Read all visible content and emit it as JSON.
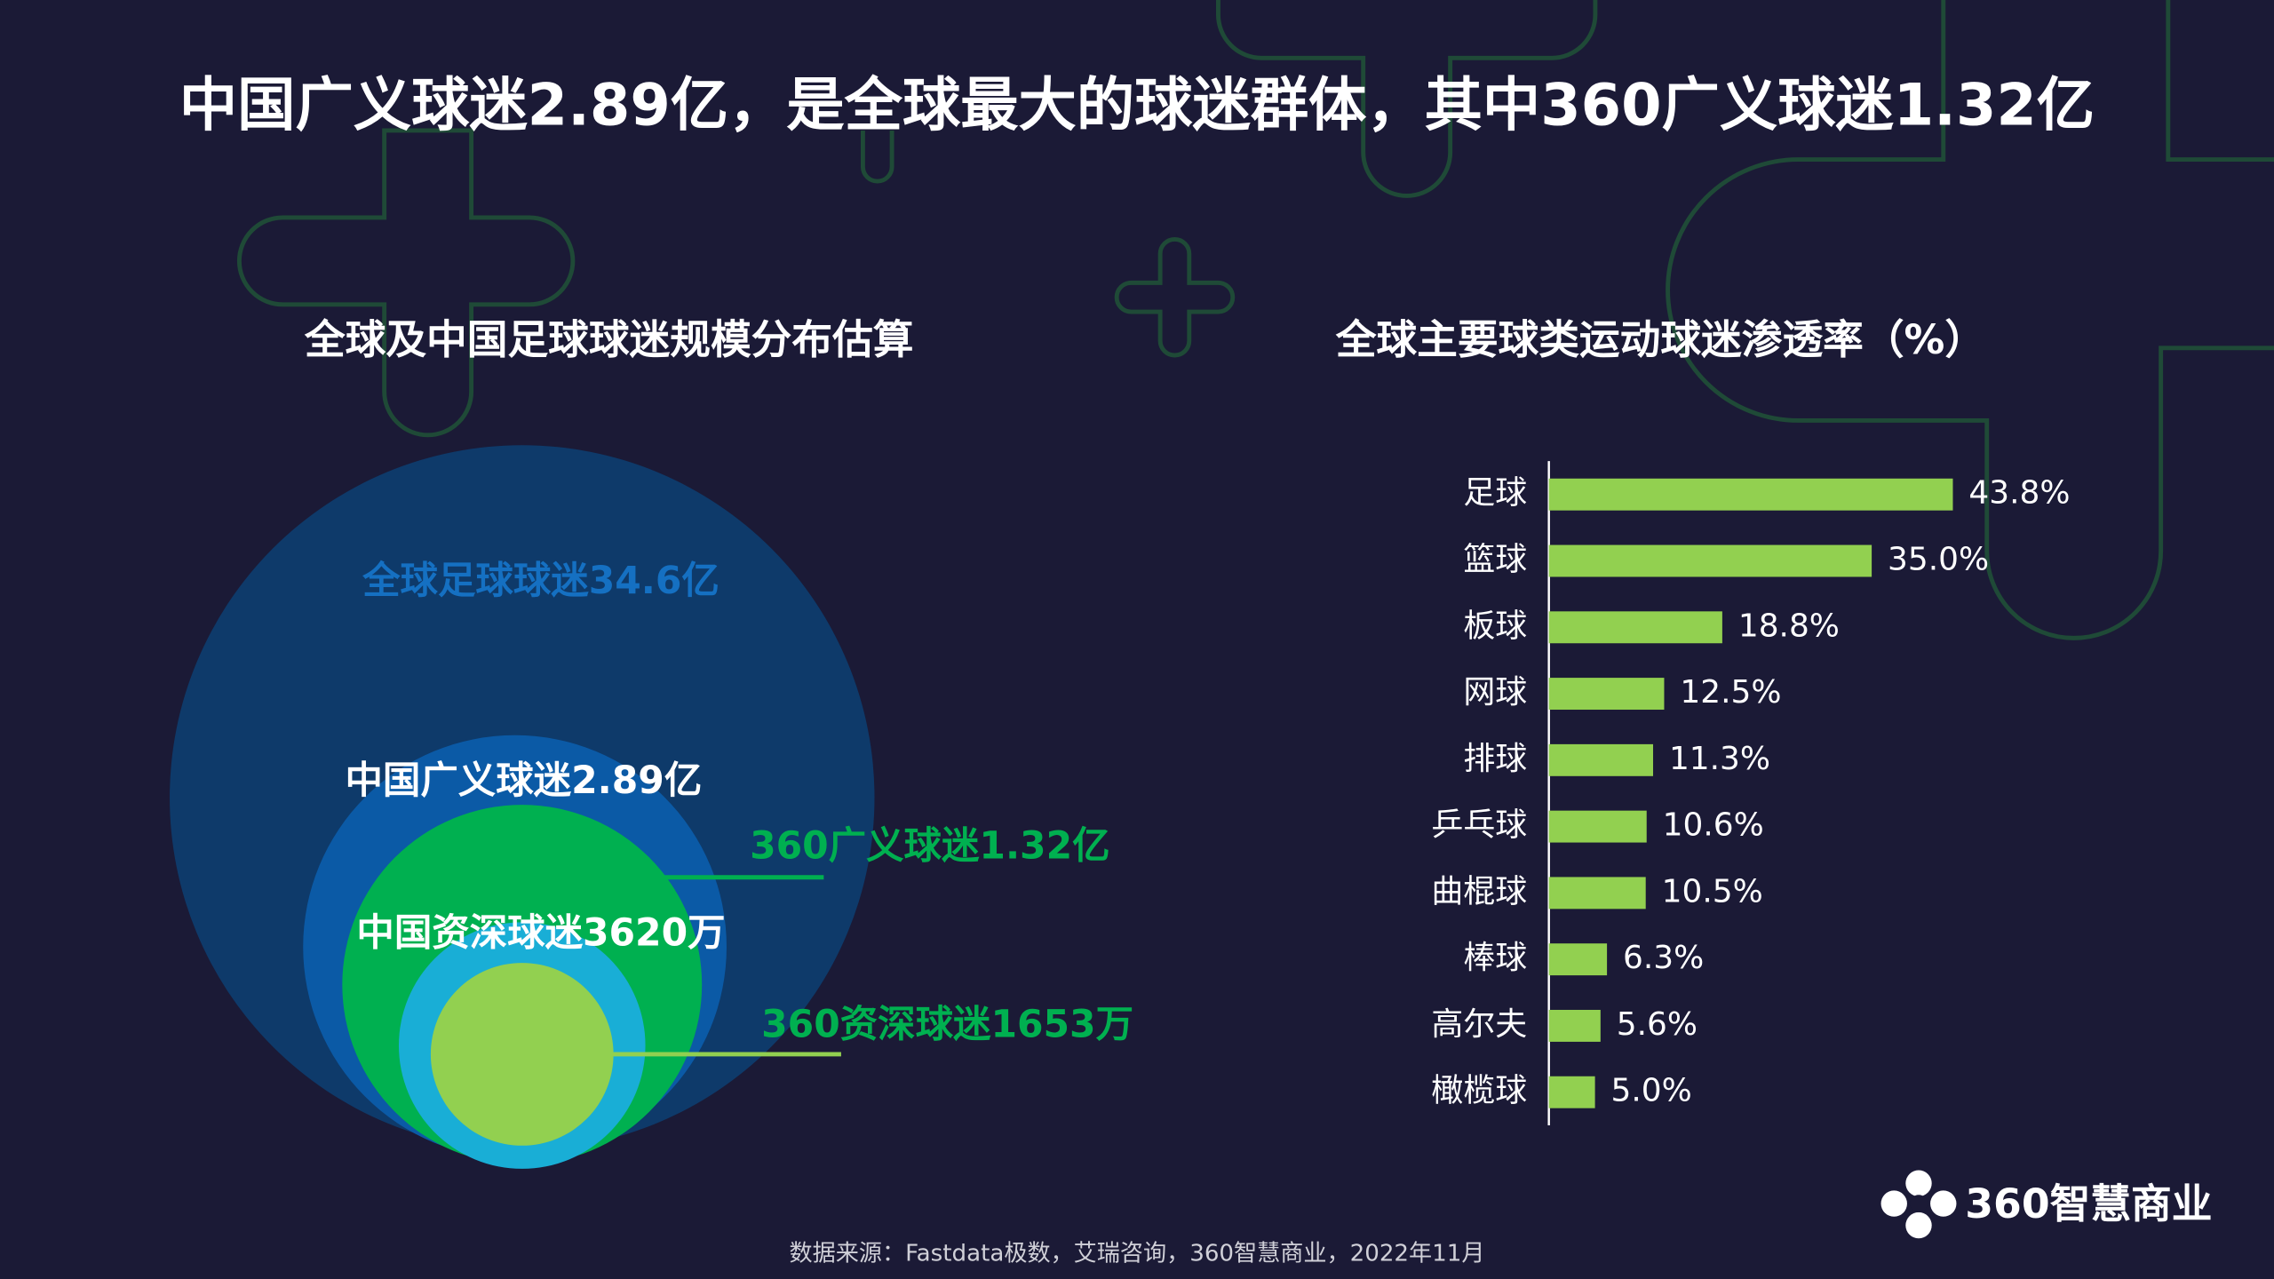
{
  "title": "中国广义球迷2.89亿，是全球最大的球迷群体，其中360广义球迷1.32亿",
  "source": "数据来源：Fastdata极数，艾瑞咨询，360智慧商业，2022年11月",
  "logo": "360智慧商业",
  "chart_data": [
    {
      "type": "nested-circles",
      "title": "全球及中国足球球迷规模分布估算",
      "circles": [
        {
          "label": "全球足球球迷34.6亿",
          "color": "#0e3a6a",
          "label_color": "#1570c2"
        },
        {
          "label": "中国广义球迷2.89亿",
          "color": "#0b5aa6",
          "label_color": "#ffffff"
        },
        {
          "label": "360广义球迷1.32亿",
          "color": "#00b050",
          "label_color": "#00b050"
        },
        {
          "label": "中国资深球迷3620万",
          "color": "#19aed6",
          "label_color": "#ffffff"
        },
        {
          "label": "360资深球迷1653万",
          "color": "#92d050",
          "label_color": "#00b050"
        }
      ]
    },
    {
      "type": "hbar",
      "title": "全球主要球类运动球迷渗透率（%）",
      "categories": [
        "足球",
        "篮球",
        "板球",
        "网球",
        "排球",
        "乒乓球",
        "曲棍球",
        "棒球",
        "高尔夫",
        "橄榄球"
      ],
      "values": [
        43.8,
        35.0,
        18.8,
        12.5,
        11.3,
        10.6,
        10.5,
        6.3,
        5.6,
        5.0
      ],
      "value_labels": [
        "43.8%",
        "35.0%",
        "18.8%",
        "12.5%",
        "11.3%",
        "10.6%",
        "10.5%",
        "6.3%",
        "5.6%",
        "5.0%"
      ],
      "color": "#92d050",
      "xlim": [
        0,
        50
      ]
    }
  ]
}
